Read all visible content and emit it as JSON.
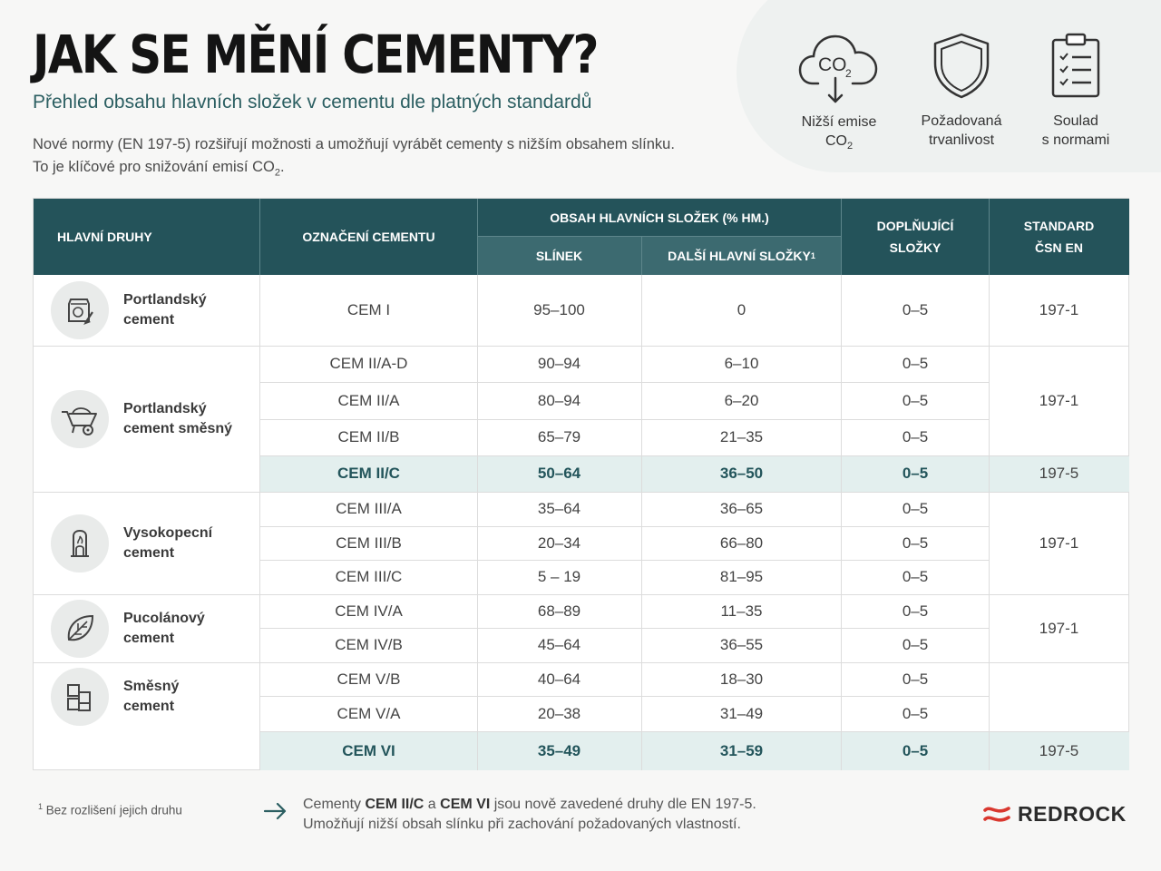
{
  "header": {
    "title": "JAK SE MĚNÍ CEMENTY?",
    "subtitle": "Přehled obsahu hlavních složek v cementu dle platných standardů",
    "intro_line1": "Nové normy (EN 197-5) rozšiřují možnosti a umožňují vyrábět cementy s nižším obsahem slínku.",
    "intro_line2_prefix": "To je klíčové pro snižování emisí CO",
    "intro_line2_sub": "2",
    "intro_line2_suffix": "."
  },
  "features": [
    {
      "icon": "co2-cloud-icon",
      "icon_text": "CO",
      "icon_sub": "2",
      "line1": "Nižší emise",
      "line2": "CO",
      "line2_sub": "2"
    },
    {
      "icon": "shield-icon",
      "line1": "Požadovaná",
      "line2": "trvanlivost"
    },
    {
      "icon": "clipboard-checklist-icon",
      "line1": "Soulad",
      "line2": "s normami"
    }
  ],
  "table": {
    "headers": {
      "main_types": "HLAVNÍ DRUHY",
      "designation": "OZNAČENÍ CEMENTU",
      "content_group": "OBSAH HLAVNÍCH SLOŽEK (% HM.)",
      "clinker": "SLÍNEK",
      "other_main": "DALŠÍ HLAVNÍ SLOŽKY",
      "other_main_sup": "1",
      "supplementary_1": "DOPLŇUJÍCÍ",
      "supplementary_2": "SLOŽKY",
      "standard_1": "STANDARD",
      "standard_2": "ČSN EN"
    },
    "groups": [
      {
        "name1": "Portlandský",
        "name2": "cement",
        "icon": "cement-bag-icon"
      },
      {
        "name1": "Portlandský",
        "name2": "cement směsný",
        "icon": "wheelbarrow-icon"
      },
      {
        "name1": "Vysokopecní",
        "name2": "cement",
        "icon": "blast-furnace-icon"
      },
      {
        "name1": "Pucolánový",
        "name2": "cement",
        "icon": "leaf-icon"
      },
      {
        "name1": "Směsný",
        "name2": "cement",
        "icon": "blocks-icon"
      }
    ],
    "rows": [
      {
        "designation": "CEM I",
        "clinker": "95–100",
        "other": "0",
        "supp": "0–5"
      },
      {
        "designation": "CEM II/A-D",
        "clinker": "90–94",
        "other": "6–10",
        "supp": "0–5"
      },
      {
        "designation": "CEM II/A",
        "clinker": "80–94",
        "other": "6–20",
        "supp": "0–5"
      },
      {
        "designation": "CEM II/B",
        "clinker": "65–79",
        "other": "21–35",
        "supp": "0–5"
      },
      {
        "designation": "CEM II/C",
        "clinker": "50–64",
        "other": "36–50",
        "supp": "0–5"
      },
      {
        "designation": "CEM III/A",
        "clinker": "35–64",
        "other": "36–65",
        "supp": "0–5"
      },
      {
        "designation": "CEM III/B",
        "clinker": "20–34",
        "other": "66–80",
        "supp": "0–5"
      },
      {
        "designation": "CEM III/C",
        "clinker": "5 – 19",
        "other": "81–95",
        "supp": "0–5"
      },
      {
        "designation": "CEM IV/A",
        "clinker": "68–89",
        "other": "11–35",
        "supp": "0–5"
      },
      {
        "designation": "CEM IV/B",
        "clinker": "45–64",
        "other": "36–55",
        "supp": "0–5"
      },
      {
        "designation": "CEM V/B",
        "clinker": "40–64",
        "other": "18–30",
        "supp": "0–5"
      },
      {
        "designation": "CEM V/A",
        "clinker": "20–38",
        "other": "31–49",
        "supp": "0–5"
      },
      {
        "designation": "CEM VI",
        "clinker": "35–49",
        "other": "31–59",
        "supp": "0–5"
      }
    ],
    "standards": [
      "197-1",
      "197-1",
      "197-5",
      "197-1",
      "197-1",
      "197-5"
    ]
  },
  "footer": {
    "footnote_sup": "1",
    "footnote": "Bez rozlišení jejich druhu",
    "note_pre": "Cementy ",
    "note_b1": "CEM II/C",
    "note_mid": " a ",
    "note_b2": "CEM VI",
    "note_post": " jsou nově zavedené druhy dle EN 197-5.",
    "note_line2": "Umožňují nižší obsah slínku při zachování požadovaných vlastností.",
    "logo": "REDROCK"
  },
  "colors": {
    "header_bg": "#24535a",
    "highlight_row": "#e3efee",
    "accent_text": "#2c5f62",
    "logo_red": "#d9382f"
  }
}
